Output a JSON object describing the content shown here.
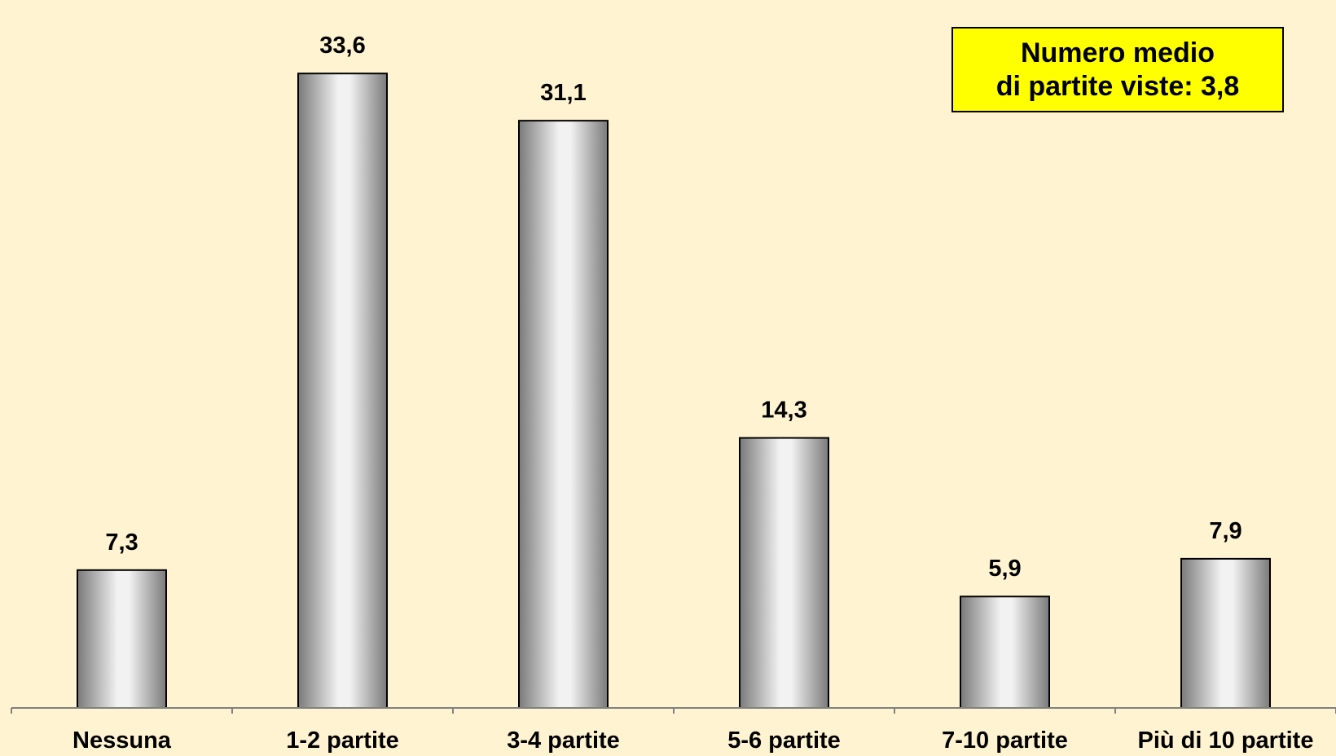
{
  "chart_data": {
    "type": "bar",
    "categories": [
      "Nessuna",
      "1-2 partite",
      "3-4 partite",
      "5-6 partite",
      "7-10 partite",
      "Più di 10 partite"
    ],
    "values": [
      7.3,
      33.6,
      31.1,
      14.3,
      5.9,
      7.9
    ],
    "value_labels": [
      "7,3",
      "33,6",
      "31,1",
      "14,3",
      "5,9",
      "7,9"
    ],
    "ylim": [
      0,
      36.5
    ],
    "grid": false,
    "colors": {
      "background": "#fff3d1",
      "bar_edge": "#000000",
      "bar_dark": "#7a7a7a",
      "bar_light": "#f2f2f2",
      "axis": "#808080"
    }
  },
  "annotation": {
    "line1": "Numero medio",
    "line2": "di partite viste: 3,8",
    "background": "#ffff00"
  }
}
